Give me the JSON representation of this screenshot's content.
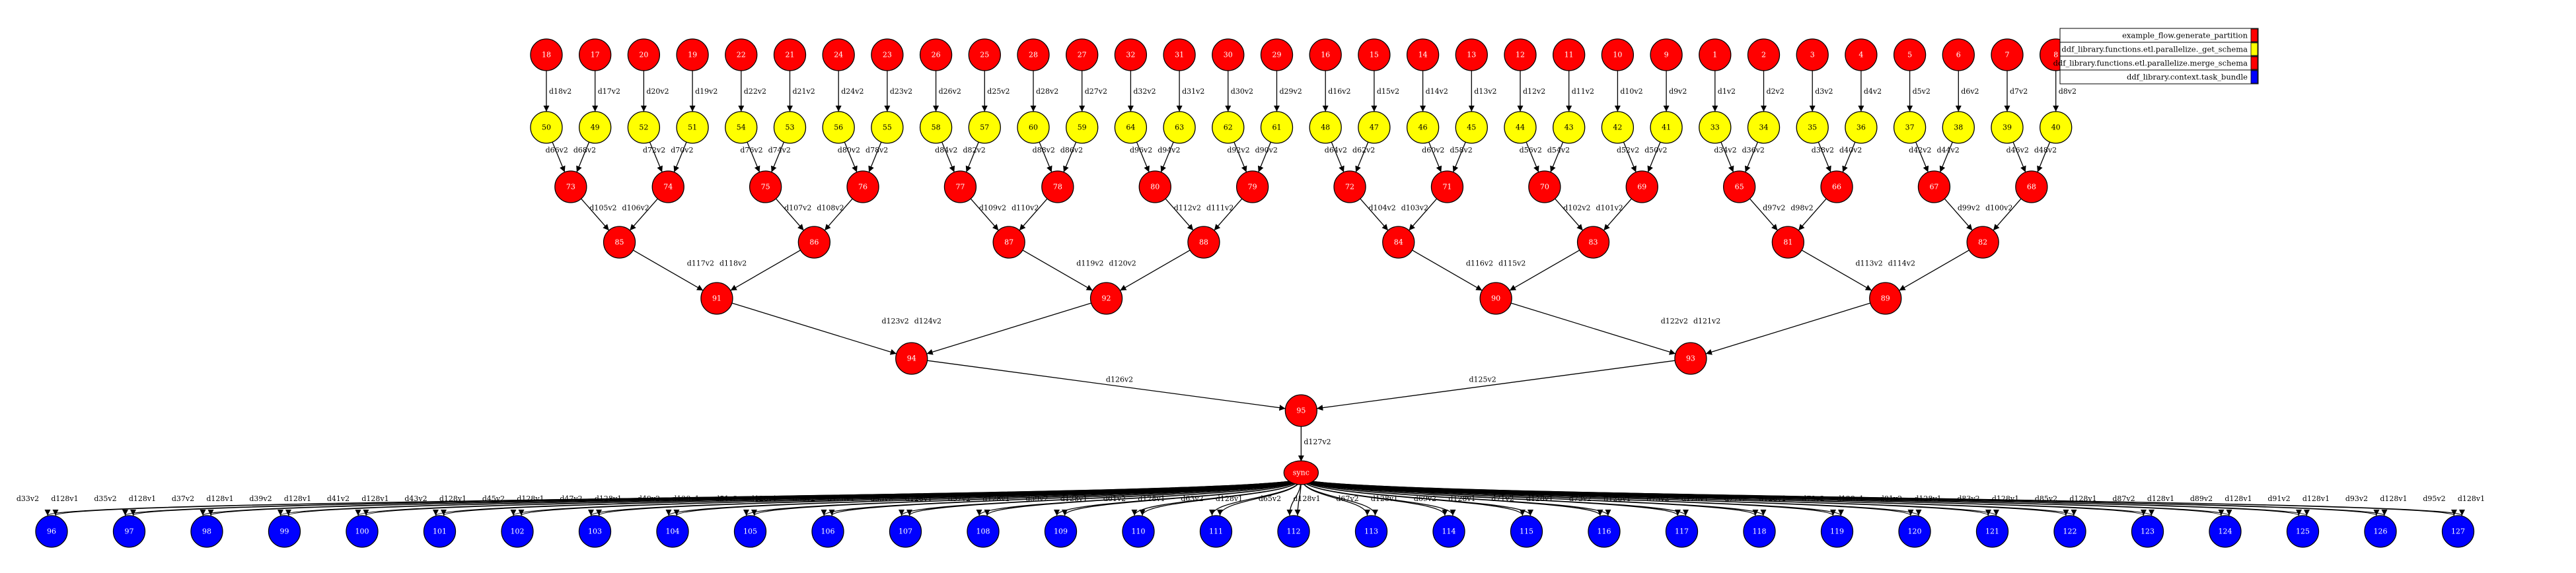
{
  "legend": [
    {
      "label": "example_flow.generate_partition",
      "color": "#ff0000"
    },
    {
      "label": "ddf_library.functions.etl.parallelize._get_schema",
      "color": "#ffff00"
    },
    {
      "label": "ddf_library.functions.etl.parallelize.merge_schema",
      "color": "#ff0000"
    },
    {
      "label": "ddf_library.context.task_bundle",
      "color": "#0000ff"
    }
  ],
  "colors": {
    "red": "#ff0000",
    "yellow": "#ffff00",
    "blue": "#0000ff",
    "edge": "#000000"
  },
  "sync_label": "sync",
  "top_nodes": [
    "18",
    "17",
    "20",
    "19",
    "22",
    "21",
    "24",
    "23",
    "26",
    "25",
    "28",
    "27",
    "32",
    "31",
    "30",
    "29",
    "16",
    "15",
    "14",
    "13",
    "12",
    "11",
    "10",
    "9",
    "1",
    "2",
    "3",
    "4",
    "5",
    "6",
    "7",
    "8"
  ],
  "top_edge_labels": [
    "d18v2",
    "d17v2",
    "d20v2",
    "d19v2",
    "d22v2",
    "d21v2",
    "d24v2",
    "d23v2",
    "d26v2",
    "d25v2",
    "d28v2",
    "d27v2",
    "d32v2",
    "d31v2",
    "d30v2",
    "d29v2",
    "d16v2",
    "d15v2",
    "d14v2",
    "d13v2",
    "d12v2",
    "d11v2",
    "d10v2",
    "d9v2",
    "d1v2",
    "d2v2",
    "d3v2",
    "d4v2",
    "d5v2",
    "d6v2",
    "d7v2",
    "d8v2"
  ],
  "yellow_nodes": [
    "50",
    "49",
    "52",
    "51",
    "54",
    "53",
    "56",
    "55",
    "58",
    "57",
    "60",
    "59",
    "64",
    "63",
    "62",
    "61",
    "48",
    "47",
    "46",
    "45",
    "44",
    "43",
    "42",
    "41",
    "33",
    "34",
    "35",
    "36",
    "37",
    "38",
    "39",
    "40"
  ],
  "level1": [
    {
      "id": "73",
      "left": "d66v2",
      "right": "d68v2"
    },
    {
      "id": "74",
      "left": "d72v2",
      "right": "d70v2"
    },
    {
      "id": "75",
      "left": "d76v2",
      "right": "d74v2"
    },
    {
      "id": "76",
      "left": "d80v2",
      "right": "d78v2"
    },
    {
      "id": "77",
      "left": "d84v2",
      "right": "d82v2"
    },
    {
      "id": "78",
      "left": "d88v2",
      "right": "d86v2"
    },
    {
      "id": "80",
      "left": "d96v2",
      "right": "d94v2"
    },
    {
      "id": "79",
      "left": "d92v2",
      "right": "d90v2"
    },
    {
      "id": "72",
      "left": "d64v2",
      "right": "d62v2"
    },
    {
      "id": "71",
      "left": "d60v2",
      "right": "d58v2"
    },
    {
      "id": "70",
      "left": "d56v2",
      "right": "d54v2"
    },
    {
      "id": "69",
      "left": "d52v2",
      "right": "d50v2"
    },
    {
      "id": "65",
      "left": "d34v2",
      "right": "d36v2"
    },
    {
      "id": "66",
      "left": "d38v2",
      "right": "d40v2"
    },
    {
      "id": "67",
      "left": "d42v2",
      "right": "d44v2"
    },
    {
      "id": "68",
      "left": "d46v2",
      "right": "d48v2"
    }
  ],
  "level2": [
    {
      "id": "85",
      "left": "d105v2",
      "right": "d106v2"
    },
    {
      "id": "86",
      "left": "d107v2",
      "right": "d108v2"
    },
    {
      "id": "87",
      "left": "d109v2",
      "right": "d110v2"
    },
    {
      "id": "88",
      "left": "d112v2",
      "right": "d111v2"
    },
    {
      "id": "84",
      "left": "d104v2",
      "right": "d103v2"
    },
    {
      "id": "83",
      "left": "d102v2",
      "right": "d101v2"
    },
    {
      "id": "81",
      "left": "d97v2",
      "right": "d98v2"
    },
    {
      "id": "82",
      "left": "d99v2",
      "right": "d100v2"
    }
  ],
  "level3": [
    {
      "id": "91",
      "left": "d117v2",
      "right": "d118v2"
    },
    {
      "id": "92",
      "left": "d119v2",
      "right": "d120v2"
    },
    {
      "id": "90",
      "left": "d116v2",
      "right": "d115v2"
    },
    {
      "id": "89",
      "left": "d113v2",
      "right": "d114v2"
    }
  ],
  "level4": [
    {
      "id": "94",
      "left": "d123v2",
      "right": "d124v2"
    },
    {
      "id": "93",
      "left": "d122v2",
      "right": "d121v2"
    }
  ],
  "level5": {
    "id": "95",
    "left": "d126v2",
    "right": "d125v2"
  },
  "sync_edge": "d127v2",
  "bottom_nodes": [
    {
      "id": "96",
      "a": "d33v2",
      "b": "d128v1"
    },
    {
      "id": "97",
      "a": "d35v2",
      "b": "d128v1"
    },
    {
      "id": "98",
      "a": "d37v2",
      "b": "d128v1"
    },
    {
      "id": "99",
      "a": "d39v2",
      "b": "d128v1"
    },
    {
      "id": "100",
      "a": "d41v2",
      "b": "d128v1"
    },
    {
      "id": "101",
      "a": "d43v2",
      "b": "d128v1"
    },
    {
      "id": "102",
      "a": "d45v2",
      "b": "d128v1"
    },
    {
      "id": "103",
      "a": "d47v2",
      "b": "d128v1"
    },
    {
      "id": "104",
      "a": "d49v2",
      "b": "d128v1"
    },
    {
      "id": "105",
      "a": "d51v2",
      "b": "d128v1"
    },
    {
      "id": "106",
      "a": "d53v2",
      "b": "d128v1"
    },
    {
      "id": "107",
      "a": "d55v2",
      "b": "d128v1"
    },
    {
      "id": "108",
      "a": "d57v2",
      "b": "d128v1"
    },
    {
      "id": "109",
      "a": "d59v2",
      "b": "d128v1"
    },
    {
      "id": "110",
      "a": "d61v2",
      "b": "d128v1"
    },
    {
      "id": "111",
      "a": "d63v2",
      "b": "d128v1"
    },
    {
      "id": "112",
      "a": "d65v2",
      "b": "d128v1"
    },
    {
      "id": "113",
      "a": "d67v2",
      "b": "d128v1"
    },
    {
      "id": "114",
      "a": "d69v2",
      "b": "d128v1"
    },
    {
      "id": "115",
      "a": "d71v2",
      "b": "d128v1"
    },
    {
      "id": "116",
      "a": "d73v2",
      "b": "d128v1"
    },
    {
      "id": "117",
      "a": "d75v2",
      "b": "d128v1"
    },
    {
      "id": "118",
      "a": "d77v2",
      "b": "d128v1"
    },
    {
      "id": "119",
      "a": "d79v2",
      "b": "d128v1"
    },
    {
      "id": "120",
      "a": "d81v2",
      "b": "d128v1"
    },
    {
      "id": "121",
      "a": "d83v2",
      "b": "d128v1"
    },
    {
      "id": "122",
      "a": "d85v2",
      "b": "d128v1"
    },
    {
      "id": "123",
      "a": "d87v2",
      "b": "d128v1"
    },
    {
      "id": "124",
      "a": "d89v2",
      "b": "d128v1"
    },
    {
      "id": "125",
      "a": "d91v2",
      "b": "d128v1"
    },
    {
      "id": "126",
      "a": "d93v2",
      "b": "d128v1"
    },
    {
      "id": "127",
      "a": "d95v2",
      "b": "d128v1"
    }
  ]
}
